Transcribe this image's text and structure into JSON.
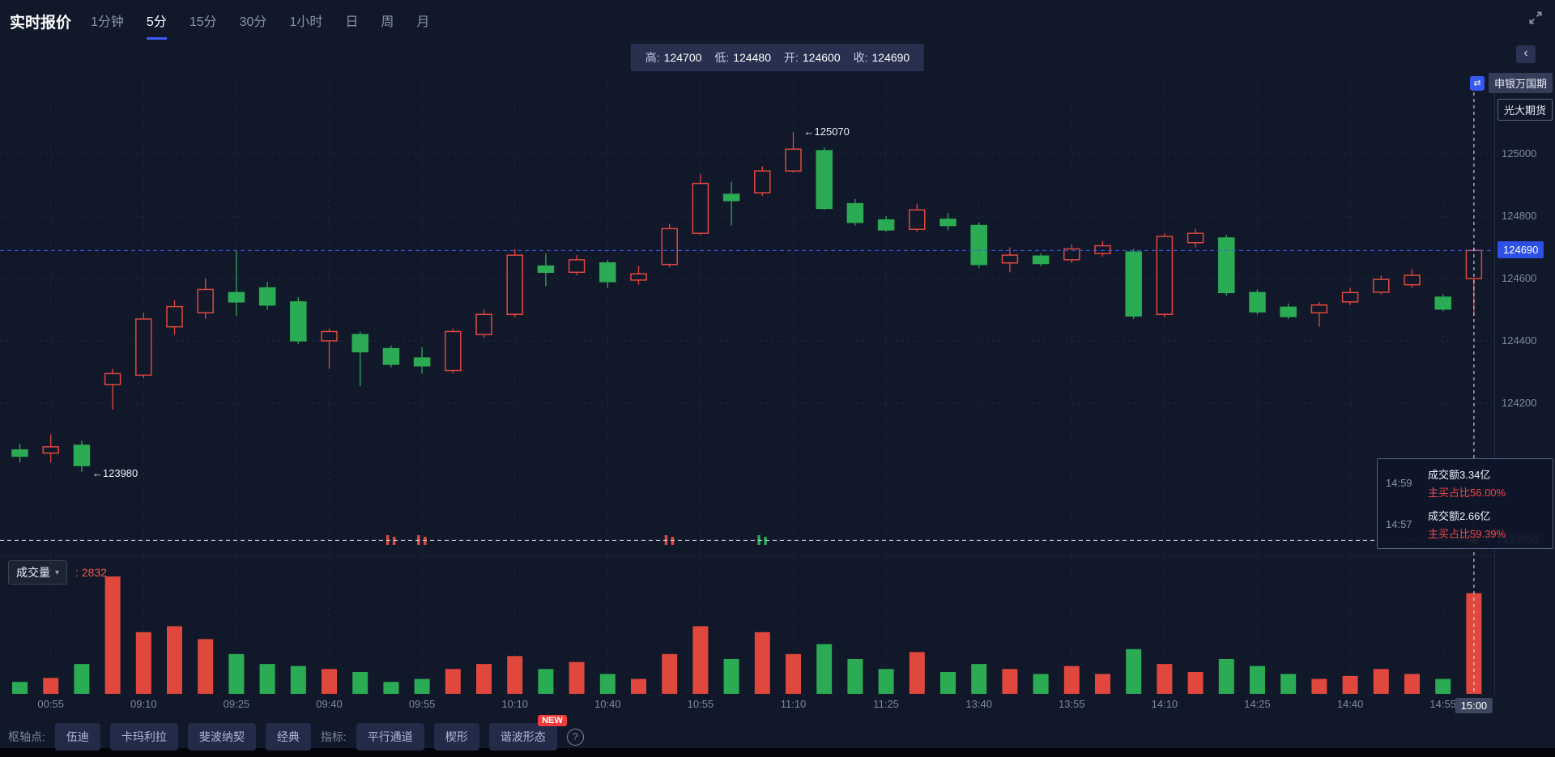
{
  "header": {
    "title": "实时报价",
    "tabs": [
      {
        "label": "1分钟"
      },
      {
        "label": "5分"
      },
      {
        "label": "15分"
      },
      {
        "label": "30分"
      },
      {
        "label": "1小时"
      },
      {
        "label": "日"
      },
      {
        "label": "周"
      },
      {
        "label": "月"
      }
    ],
    "ohlc": [
      {
        "label": "高:",
        "value": "124700"
      },
      {
        "label": "低:",
        "value": "124480"
      },
      {
        "label": "开:",
        "value": "124600"
      },
      {
        "label": "收:",
        "value": "124690"
      }
    ]
  },
  "top_right": {
    "collapse_icon": "‹",
    "brokers": [
      "申银万国期",
      "光大期货"
    ]
  },
  "volume_pane": {
    "label": "成交量",
    "caret": "▾",
    "value_prefix": ":",
    "value": "2832"
  },
  "tooltip": {
    "rows": [
      {
        "time": "14:59",
        "amount": "成交额3.34亿",
        "ratio": "主买占比56.00%"
      },
      {
        "time": "14:57",
        "amount": "成交额2.66亿",
        "ratio": "主买占比59.39%"
      }
    ]
  },
  "footer": {
    "pivot_label": "枢轴点:",
    "pivot_buttons": [
      "伍迪",
      "卡玛利拉",
      "斐波纳契",
      "经典"
    ],
    "indicator_label": "指标:",
    "indicator_buttons": [
      "平行通道",
      "楔形",
      "谐波形态"
    ],
    "new_badge": "NEW",
    "help_icon": "?"
  },
  "chart_data": {
    "type": "candlestick",
    "price_ticks": [
      125000,
      124800,
      124600,
      124400,
      124200
    ],
    "current_price": 124690,
    "baseline_price": 123760,
    "high_annotation": "←125070",
    "low_annotation": "←123980",
    "volume_current": 2832,
    "legend_position": "none",
    "time_labels": [
      {
        "i": 1,
        "t": "00:55"
      },
      {
        "i": 4,
        "t": "09:10"
      },
      {
        "i": 7,
        "t": "09:25"
      },
      {
        "i": 10,
        "t": "09:40"
      },
      {
        "i": 13,
        "t": "09:55"
      },
      {
        "i": 16,
        "t": "10:10"
      },
      {
        "i": 19,
        "t": "10:40"
      },
      {
        "i": 22,
        "t": "10:55"
      },
      {
        "i": 25,
        "t": "11:10"
      },
      {
        "i": 28,
        "t": "11:25"
      },
      {
        "i": 31,
        "t": "13:40"
      },
      {
        "i": 34,
        "t": "13:55"
      },
      {
        "i": 37,
        "t": "14:10"
      },
      {
        "i": 40,
        "t": "14:25"
      },
      {
        "i": 43,
        "t": "14:40"
      },
      {
        "i": 46,
        "t": "14:55"
      },
      {
        "i": 47,
        "t": "15:00",
        "current": true
      }
    ],
    "candles": [
      [
        124050,
        124070,
        124010,
        124030,
        336
      ],
      [
        124040,
        124100,
        124010,
        124060,
        448
      ],
      [
        124065,
        124080,
        123980,
        124000,
        840
      ],
      [
        124260,
        124310,
        124180,
        124295,
        3304
      ],
      [
        124290,
        124490,
        124280,
        124470,
        1736
      ],
      [
        124445,
        124530,
        124420,
        124510,
        1904
      ],
      [
        124490,
        124600,
        124470,
        124565,
        1540
      ],
      [
        124555,
        124690,
        124480,
        124525,
        1120
      ],
      [
        124570,
        124590,
        124500,
        124515,
        840
      ],
      [
        124525,
        124540,
        124390,
        124400,
        784
      ],
      [
        124400,
        124440,
        124310,
        124430,
        700
      ],
      [
        124420,
        124430,
        124255,
        124365,
        616
      ],
      [
        124375,
        124385,
        124315,
        124325,
        336
      ],
      [
        124345,
        124380,
        124295,
        124320,
        420
      ],
      [
        124305,
        124440,
        124295,
        124430,
        700
      ],
      [
        124420,
        124500,
        124410,
        124485,
        840
      ],
      [
        124485,
        124695,
        124475,
        124675,
        1064
      ],
      [
        124640,
        124680,
        124575,
        124620,
        700
      ],
      [
        124620,
        124675,
        124610,
        124660,
        896
      ],
      [
        124650,
        124660,
        124570,
        124590,
        560
      ],
      [
        124595,
        124640,
        124580,
        124615,
        420
      ],
      [
        124645,
        124775,
        124635,
        124760,
        1120
      ],
      [
        124745,
        124935,
        124740,
        124905,
        1904
      ],
      [
        124870,
        124910,
        124770,
        124850,
        980
      ],
      [
        124875,
        124960,
        124865,
        124945,
        1736
      ],
      [
        124945,
        125070,
        124940,
        125015,
        1120
      ],
      [
        125010,
        125020,
        124820,
        124825,
        1400
      ],
      [
        124840,
        124855,
        124770,
        124780,
        980
      ],
      [
        124788,
        124800,
        124750,
        124756,
        700
      ],
      [
        124758,
        124840,
        124750,
        124820,
        1176
      ],
      [
        124790,
        124810,
        124755,
        124770,
        616
      ],
      [
        124770,
        124780,
        124635,
        124645,
        840
      ],
      [
        124650,
        124700,
        124620,
        124675,
        700
      ],
      [
        124672,
        124680,
        124640,
        124648,
        560
      ],
      [
        124660,
        124710,
        124650,
        124695,
        784
      ],
      [
        124680,
        124720,
        124670,
        124705,
        560
      ],
      [
        124685,
        124695,
        124470,
        124480,
        1260
      ],
      [
        124485,
        124745,
        124475,
        124735,
        840
      ],
      [
        124715,
        124760,
        124700,
        124745,
        616
      ],
      [
        124730,
        124740,
        124545,
        124555,
        980
      ],
      [
        124555,
        124565,
        124485,
        124493,
        784
      ],
      [
        124508,
        124520,
        124470,
        124478,
        560
      ],
      [
        124490,
        124525,
        124445,
        124515,
        420
      ],
      [
        124525,
        124570,
        124515,
        124555,
        504
      ],
      [
        124556,
        124610,
        124550,
        124597,
        700
      ],
      [
        124580,
        124630,
        124570,
        124610,
        560
      ],
      [
        124540,
        124550,
        124495,
        124502,
        420
      ],
      [
        124600,
        124700,
        124480,
        124690,
        2832
      ]
    ],
    "markers": [
      {
        "i": 12,
        "d": "up"
      },
      {
        "i": 13,
        "d": "up"
      },
      {
        "i": 21,
        "d": "up"
      },
      {
        "i": 24,
        "d": "down"
      },
      {
        "i": 47,
        "d": "up"
      }
    ],
    "colors": {
      "up": "#e0483e",
      "down": "#2bab54",
      "accent": "#3d5cf5",
      "baseline": "#dfe4f0",
      "crosshair_dot": "#f0a93b",
      "grid": "rgba(140,160,210,0.12)",
      "bg": "#101829"
    }
  }
}
